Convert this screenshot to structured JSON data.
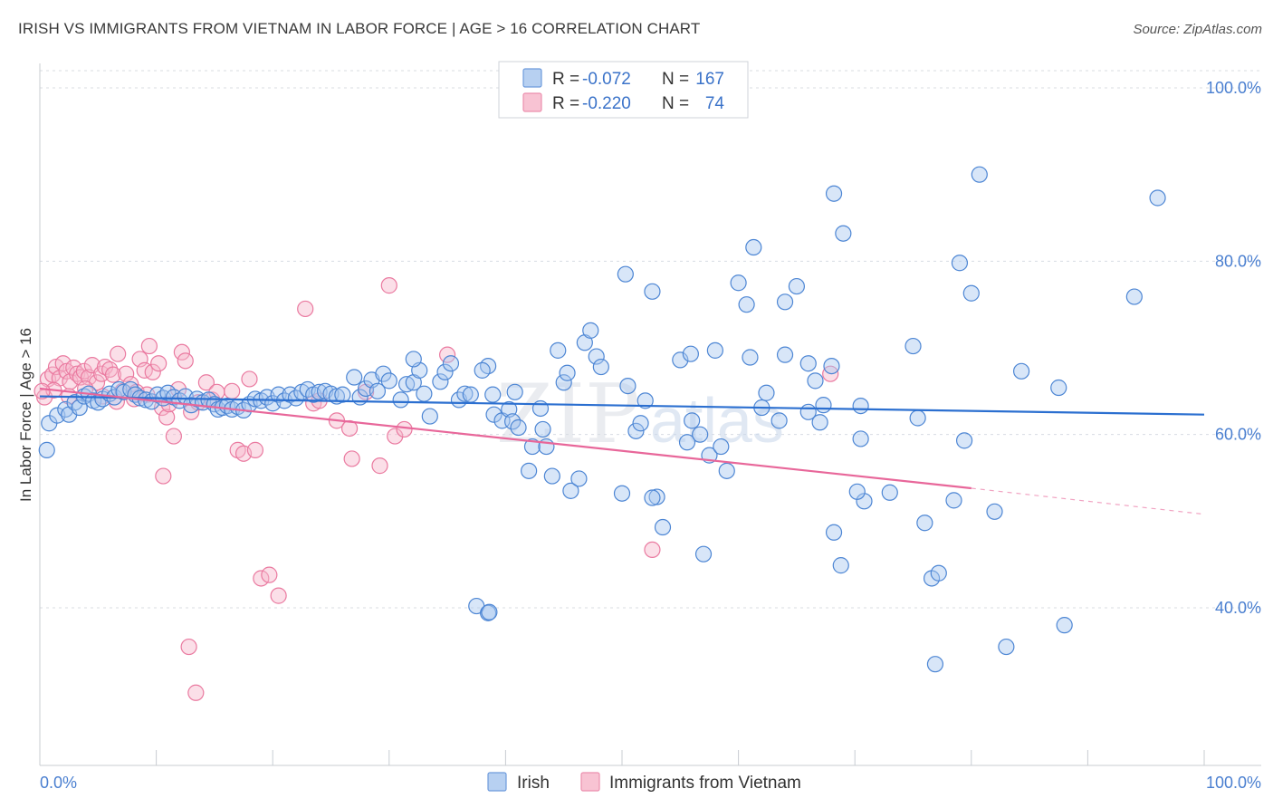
{
  "header": {
    "title": "IRISH VS IMMIGRANTS FROM VIETNAM IN LABOR FORCE | AGE > 16 CORRELATION CHART",
    "source": "Source: ZipAtlas.com"
  },
  "stats": {
    "irish": {
      "r_label": "R =",
      "r_value": "-0.072",
      "n_label": "N =",
      "n_value": "167"
    },
    "vietnam": {
      "r_label": "R =",
      "r_value": "-0.220",
      "n_label": "N =",
      "n_value": "74"
    }
  },
  "legend": {
    "irish": "Irish",
    "vietnam": "Immigrants from Vietnam"
  },
  "watermark": {
    "zip": "ZIP",
    "atlas": "atlas"
  },
  "colors": {
    "irish_fill": "#a9c8ef",
    "irish_stroke": "#4d86d4",
    "irish_line": "#2b6fd0",
    "vietnam_fill": "#f7b7cb",
    "vietnam_stroke": "#ea7aa0",
    "vietnam_line": "#e8679a",
    "grid": "#d8dce2",
    "tick_text": "#4a7fd0"
  },
  "chart_data": {
    "type": "scatter",
    "title": "IRISH VS IMMIGRANTS FROM VIETNAM IN LABOR FORCE | AGE > 16 CORRELATION CHART",
    "xlabel": "",
    "ylabel": "In Labor Force | Age > 16",
    "xlim": [
      0,
      100
    ],
    "ylim": [
      20,
      102
    ],
    "x_tick_labels": [
      "0.0%",
      "100.0%"
    ],
    "y_ticks": [
      40,
      60,
      80,
      100
    ],
    "y_tick_labels": [
      "40.0%",
      "60.0%",
      "80.0%",
      "100.0%"
    ],
    "grid": true,
    "legend_position": "bottom-center",
    "series": [
      {
        "name": "Irish",
        "r": -0.072,
        "n": 167,
        "trend": {
          "x": [
            0,
            100
          ],
          "y": [
            64.4,
            62.3
          ]
        },
        "points": [
          [
            0.6,
            58.2
          ],
          [
            0.8,
            61.3
          ],
          [
            1.5,
            62.2
          ],
          [
            2.2,
            62.9
          ],
          [
            2.5,
            62.3
          ],
          [
            3,
            63.7
          ],
          [
            3.4,
            63.1
          ],
          [
            3.8,
            64.4
          ],
          [
            4.2,
            64.7
          ],
          [
            4.6,
            63.9
          ],
          [
            5,
            63.7
          ],
          [
            5.4,
            64.1
          ],
          [
            6,
            64.7
          ],
          [
            6.4,
            64.3
          ],
          [
            6.8,
            65.2
          ],
          [
            7.2,
            64.9
          ],
          [
            7.8,
            65.2
          ],
          [
            8.2,
            64.6
          ],
          [
            8.6,
            64.2
          ],
          [
            9.1,
            64.0
          ],
          [
            9.6,
            63.8
          ],
          [
            10.1,
            64.6
          ],
          [
            10.6,
            64.2
          ],
          [
            11,
            64.8
          ],
          [
            11.5,
            64.3
          ],
          [
            12,
            63.9
          ],
          [
            12.5,
            64.4
          ],
          [
            13,
            63.4
          ],
          [
            13.5,
            64.1
          ],
          [
            14,
            63.7
          ],
          [
            14.5,
            64.0
          ],
          [
            15,
            63.5
          ],
          [
            15.3,
            62.9
          ],
          [
            15.7,
            63.1
          ],
          [
            16.1,
            63.3
          ],
          [
            16.5,
            62.9
          ],
          [
            17,
            63.2
          ],
          [
            17.5,
            62.8
          ],
          [
            18,
            63.5
          ],
          [
            18.5,
            64.1
          ],
          [
            19,
            63.9
          ],
          [
            19.5,
            64.3
          ],
          [
            20,
            63.6
          ],
          [
            20.5,
            64.6
          ],
          [
            21,
            63.9
          ],
          [
            21.5,
            64.6
          ],
          [
            22,
            64.2
          ],
          [
            22.5,
            64.9
          ],
          [
            23,
            65.2
          ],
          [
            23.5,
            64.6
          ],
          [
            24,
            64.9
          ],
          [
            24.5,
            65.0
          ],
          [
            25,
            64.7
          ],
          [
            25.5,
            64.4
          ],
          [
            26,
            64.6
          ],
          [
            27,
            66.6
          ],
          [
            27.5,
            64.3
          ],
          [
            28,
            65.3
          ],
          [
            28.5,
            66.3
          ],
          [
            29,
            65.0
          ],
          [
            29.5,
            67.0
          ],
          [
            30,
            66.2
          ],
          [
            31,
            64.0
          ],
          [
            31.5,
            65.8
          ],
          [
            32.1,
            66.0
          ],
          [
            32.6,
            67.4
          ],
          [
            32.1,
            68.7
          ],
          [
            33,
            64.7
          ],
          [
            33.5,
            62.1
          ],
          [
            34.4,
            66.1
          ],
          [
            34.8,
            67.2
          ],
          [
            35.3,
            68.2
          ],
          [
            36,
            64.0
          ],
          [
            36.5,
            64.7
          ],
          [
            37,
            64.6
          ],
          [
            38.5,
            67.9
          ],
          [
            38,
            67.4
          ],
          [
            38.9,
            64.6
          ],
          [
            39,
            62.3
          ],
          [
            39.7,
            61.6
          ],
          [
            40.3,
            62.9
          ],
          [
            40.6,
            61.5
          ],
          [
            40.8,
            64.9
          ],
          [
            41.1,
            60.8
          ],
          [
            42,
            55.8
          ],
          [
            42.3,
            58.6
          ],
          [
            43,
            63.0
          ],
          [
            43.2,
            60.6
          ],
          [
            43.5,
            58.6
          ],
          [
            44,
            55.2
          ],
          [
            44.5,
            69.7
          ],
          [
            45,
            66.0
          ],
          [
            45.3,
            67.1
          ],
          [
            45.6,
            53.5
          ],
          [
            46.3,
            54.9
          ],
          [
            46.8,
            70.6
          ],
          [
            47.3,
            72.0
          ],
          [
            47.8,
            69.0
          ],
          [
            48.2,
            67.8
          ],
          [
            50,
            53.2
          ],
          [
            50.5,
            65.6
          ],
          [
            51.2,
            60.4
          ],
          [
            51.6,
            61.3
          ],
          [
            53,
            52.8
          ],
          [
            52,
            63.9
          ],
          [
            52.6,
            52.7
          ],
          [
            53.5,
            49.3
          ],
          [
            55,
            68.6
          ],
          [
            55.6,
            59.1
          ],
          [
            55.9,
            69.3
          ],
          [
            56,
            61.6
          ],
          [
            56.7,
            60.0
          ],
          [
            57,
            46.2
          ],
          [
            57.5,
            57.6
          ],
          [
            58,
            69.7
          ],
          [
            58.5,
            58.6
          ],
          [
            59,
            55.8
          ],
          [
            60,
            77.5
          ],
          [
            60.7,
            75.0
          ],
          [
            61,
            68.9
          ],
          [
            62,
            63.1
          ],
          [
            62.4,
            64.8
          ],
          [
            63.5,
            61.6
          ],
          [
            64,
            75.3
          ],
          [
            64,
            69.2
          ],
          [
            65,
            77.1
          ],
          [
            66,
            62.6
          ],
          [
            66.6,
            66.2
          ],
          [
            67,
            61.4
          ],
          [
            67.3,
            63.4
          ],
          [
            68,
            67.9
          ],
          [
            68.2,
            48.7
          ],
          [
            70.5,
            59.5
          ],
          [
            70.8,
            52.3
          ],
          [
            70.2,
            53.4
          ],
          [
            70.5,
            63.3
          ],
          [
            68.8,
            44.9
          ],
          [
            73,
            53.3
          ],
          [
            75,
            70.2
          ],
          [
            75.4,
            61.9
          ],
          [
            76,
            49.8
          ],
          [
            76.6,
            43.4
          ],
          [
            77.2,
            44.0
          ],
          [
            78.5,
            52.4
          ],
          [
            79,
            79.8
          ],
          [
            79.4,
            59.3
          ],
          [
            80,
            76.3
          ],
          [
            80.7,
            90.0
          ],
          [
            82,
            51.1
          ],
          [
            83,
            35.5
          ],
          [
            84.3,
            67.3
          ],
          [
            87.5,
            65.4
          ],
          [
            88,
            38.0
          ],
          [
            94,
            75.9
          ],
          [
            96,
            87.3
          ],
          [
            37.5,
            40.2
          ],
          [
            38.5,
            39.4
          ],
          [
            38.6,
            39.5
          ],
          [
            68.2,
            87.8
          ],
          [
            69,
            83.2
          ],
          [
            61.3,
            81.6
          ],
          [
            50.3,
            78.5
          ],
          [
            52.6,
            76.5
          ],
          [
            66,
            68.2
          ],
          [
            76.9,
            33.5
          ]
        ]
      },
      {
        "name": "Immigrants from Vietnam",
        "r": -0.22,
        "n": 74,
        "trend": {
          "x": [
            0,
            80
          ],
          "y": [
            65.3,
            53.8
          ],
          "dashed_to": [
            100,
            50.8
          ]
        },
        "points": [
          [
            0.4,
            64.3
          ],
          [
            0.7,
            66.4
          ],
          [
            1.1,
            66.9
          ],
          [
            1.4,
            67.8
          ],
          [
            1.7,
            66.5
          ],
          [
            2,
            68.2
          ],
          [
            2.3,
            67.3
          ],
          [
            2.6,
            66.1
          ],
          [
            2.9,
            67.7
          ],
          [
            3.2,
            67.0
          ],
          [
            3.5,
            66.6
          ],
          [
            3.8,
            67.3
          ],
          [
            4.2,
            66.6
          ],
          [
            4.5,
            68.0
          ],
          [
            4.9,
            66.0
          ],
          [
            5.3,
            67.0
          ],
          [
            5.6,
            67.8
          ],
          [
            6,
            67.5
          ],
          [
            6.3,
            66.9
          ],
          [
            6.7,
            69.3
          ],
          [
            7.1,
            65.0
          ],
          [
            7.4,
            67.0
          ],
          [
            7.8,
            65.8
          ],
          [
            8.1,
            64.1
          ],
          [
            8.6,
            68.7
          ],
          [
            9,
            67.4
          ],
          [
            9.4,
            70.2
          ],
          [
            9.7,
            67.2
          ],
          [
            10.2,
            68.2
          ],
          [
            10.5,
            63.1
          ],
          [
            10.9,
            62.0
          ],
          [
            11.1,
            63.5
          ],
          [
            11.5,
            59.8
          ],
          [
            11.9,
            65.2
          ],
          [
            12.2,
            69.5
          ],
          [
            12.5,
            68.5
          ],
          [
            13,
            62.6
          ],
          [
            13.6,
            63.7
          ],
          [
            14.3,
            66.0
          ],
          [
            14.8,
            64.0
          ],
          [
            15.2,
            64.9
          ],
          [
            16.5,
            65.0
          ],
          [
            17,
            58.2
          ],
          [
            17.5,
            57.8
          ],
          [
            18,
            66.4
          ],
          [
            18.5,
            58.2
          ],
          [
            19,
            43.4
          ],
          [
            19.7,
            43.8
          ],
          [
            20.5,
            41.4
          ],
          [
            22.8,
            74.5
          ],
          [
            23.5,
            63.6
          ],
          [
            24,
            63.9
          ],
          [
            25.5,
            61.6
          ],
          [
            26.6,
            60.7
          ],
          [
            26.8,
            57.2
          ],
          [
            28,
            64.9
          ],
          [
            29.2,
            56.4
          ],
          [
            30,
            77.2
          ],
          [
            30.5,
            59.8
          ],
          [
            31.3,
            60.6
          ],
          [
            35,
            69.2
          ],
          [
            52.6,
            46.7
          ],
          [
            67.9,
            67.0
          ],
          [
            10.6,
            55.2
          ],
          [
            12.8,
            35.5
          ],
          [
            13.4,
            30.2
          ],
          [
            1.2,
            65.1
          ],
          [
            2.5,
            64.4
          ],
          [
            3.9,
            65.3
          ],
          [
            5.4,
            64.4
          ],
          [
            6.6,
            63.8
          ],
          [
            8.3,
            64.9
          ],
          [
            9.2,
            64.6
          ],
          [
            0.2,
            65.0
          ]
        ]
      }
    ]
  }
}
